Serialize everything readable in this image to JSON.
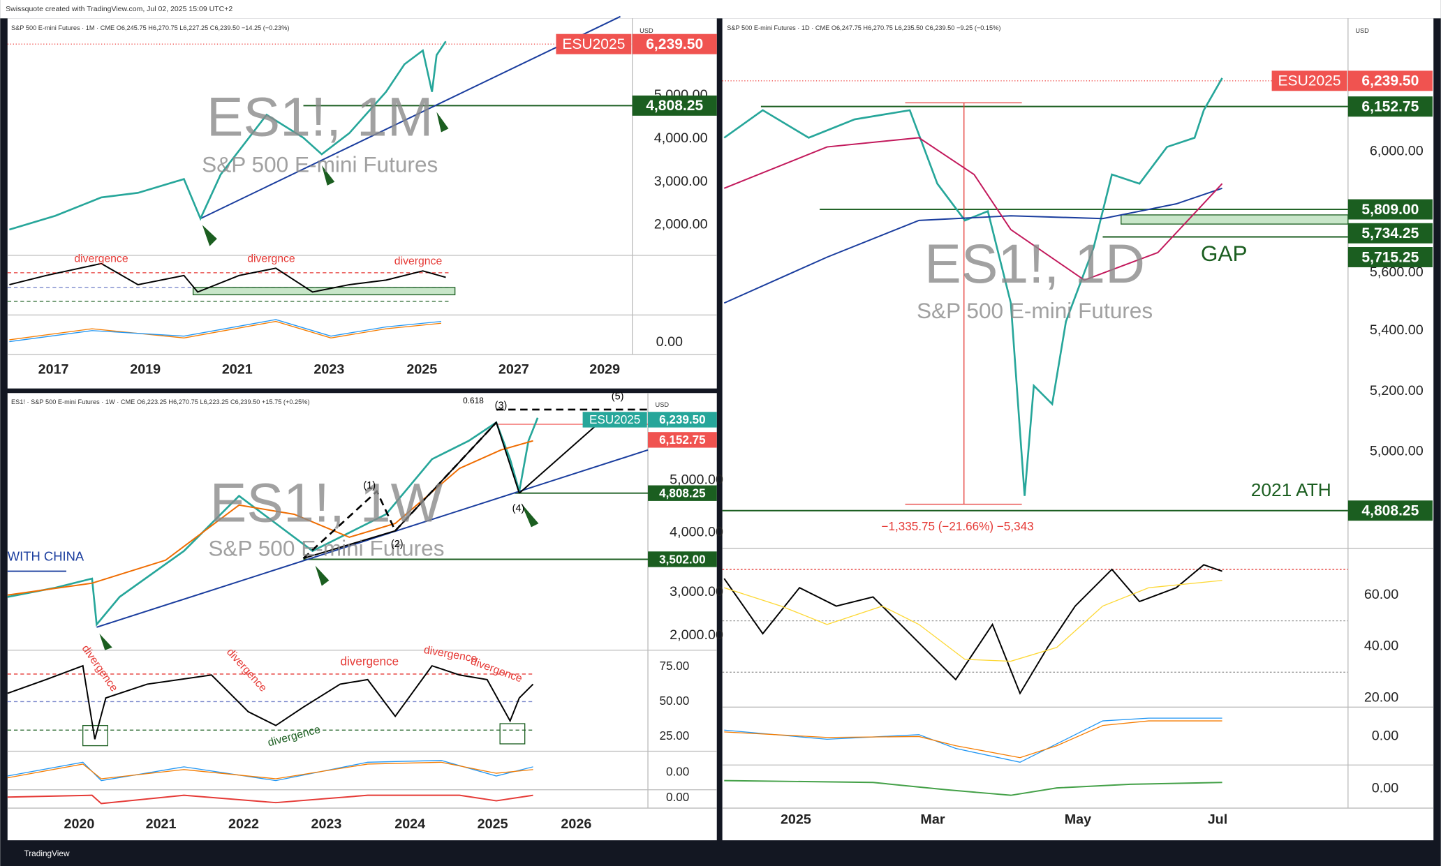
{
  "header": "Swissquote created with TradingView.com, Jul 02, 2025 15:09 UTC+2",
  "footer": "TradingView",
  "panels": [
    {
      "legend": "S&P 500 E-mini Futures · 1M · CME  O6,245.75  H6,270.75  L6,227.25  C6,239.50  −14.25 (−0.23%)",
      "currency": "USD",
      "watermark": "ES1!, 1M",
      "watermark_sub": "S&P 500 E-mini Futures",
      "price_ticks": [
        "5,000.00",
        "4,000.00",
        "3,000.00",
        "2,000.00"
      ],
      "indicator_ticks": [
        "0.00"
      ],
      "time_ticks": [
        "2017",
        "2019",
        "2021",
        "2023",
        "2025",
        "2027",
        "2029"
      ],
      "price_labels": [
        {
          "symbol": "ESU2025",
          "price": "6,239.50",
          "color": "#f05350"
        },
        {
          "price": "4,808.25",
          "color": "#1b5e20"
        }
      ],
      "annotations": [
        "divergence",
        "divergnce",
        "divergnce"
      ]
    },
    {
      "legend": "ES1! · S&P 500 E-mini Futures · 1W · CME  O6,223.25  H6,270.75  L6,223.25  C6,239.50  +15.75 (+0.25%)",
      "currency": "USD",
      "watermark": "ES1!, 1W",
      "watermark_sub": "S&P 500 E-mini Futures",
      "price_ticks": [
        "5,000.00",
        "4,000.00",
        "3,000.00",
        "2,000.00"
      ],
      "indicator_ticks": [
        "75.00",
        "50.00",
        "25.00",
        "0.00",
        "0.00"
      ],
      "time_ticks": [
        "2020",
        "2021",
        "2022",
        "2023",
        "2024",
        "2025",
        "2026"
      ],
      "price_labels": [
        {
          "symbol": "ESU2025",
          "price": "6,239.50",
          "color": "#26a69a"
        },
        {
          "price": "6,152.75",
          "color": "#f05350"
        },
        {
          "price": "4,808.25",
          "color": "#1b5e20"
        },
        {
          "price": "3,502.00",
          "color": "#1b5e20"
        }
      ],
      "annotations": [
        "0.618",
        "(1)",
        "(2)",
        "(3)",
        "(4)",
        "(5)",
        "WITH CHINA",
        "divergence",
        "divergence",
        "divergence",
        "divergence",
        "divergence",
        "divergence"
      ]
    },
    {
      "legend": "S&P 500 E-mini Futures · 1D · CME  O6,247.75  H6,270.75  L6,235.50  C6,239.50  −9.25 (−0.15%)",
      "currency": "USD",
      "watermark": "ES1!, 1D",
      "watermark_sub": "S&P 500 E-mini Futures",
      "price_ticks": [
        "6,000.00",
        "5,600.00",
        "5,400.00",
        "5,200.00",
        "5,000.00"
      ],
      "indicator_ticks": [
        "60.00",
        "40.00",
        "20.00",
        "0.00",
        "0.00"
      ],
      "time_ticks": [
        "2025",
        "Mar",
        "May",
        "Jul"
      ],
      "price_labels": [
        {
          "symbol": "ESU2025",
          "price": "6,239.50",
          "color": "#f05350"
        },
        {
          "price": "6,152.75",
          "color": "#1b5e20"
        },
        {
          "price": "5,809.00",
          "color": "#1b5e20"
        },
        {
          "price": "5,734.25",
          "color": "#1b5e20"
        },
        {
          "price": "5,715.25",
          "color": "#1b5e20"
        },
        {
          "price": "4,808.25",
          "color": "#1b5e20"
        }
      ],
      "annotations": [
        "GAP",
        "2021 ATH",
        "−1,335.75 (−21.66%) −5,343"
      ]
    }
  ]
}
